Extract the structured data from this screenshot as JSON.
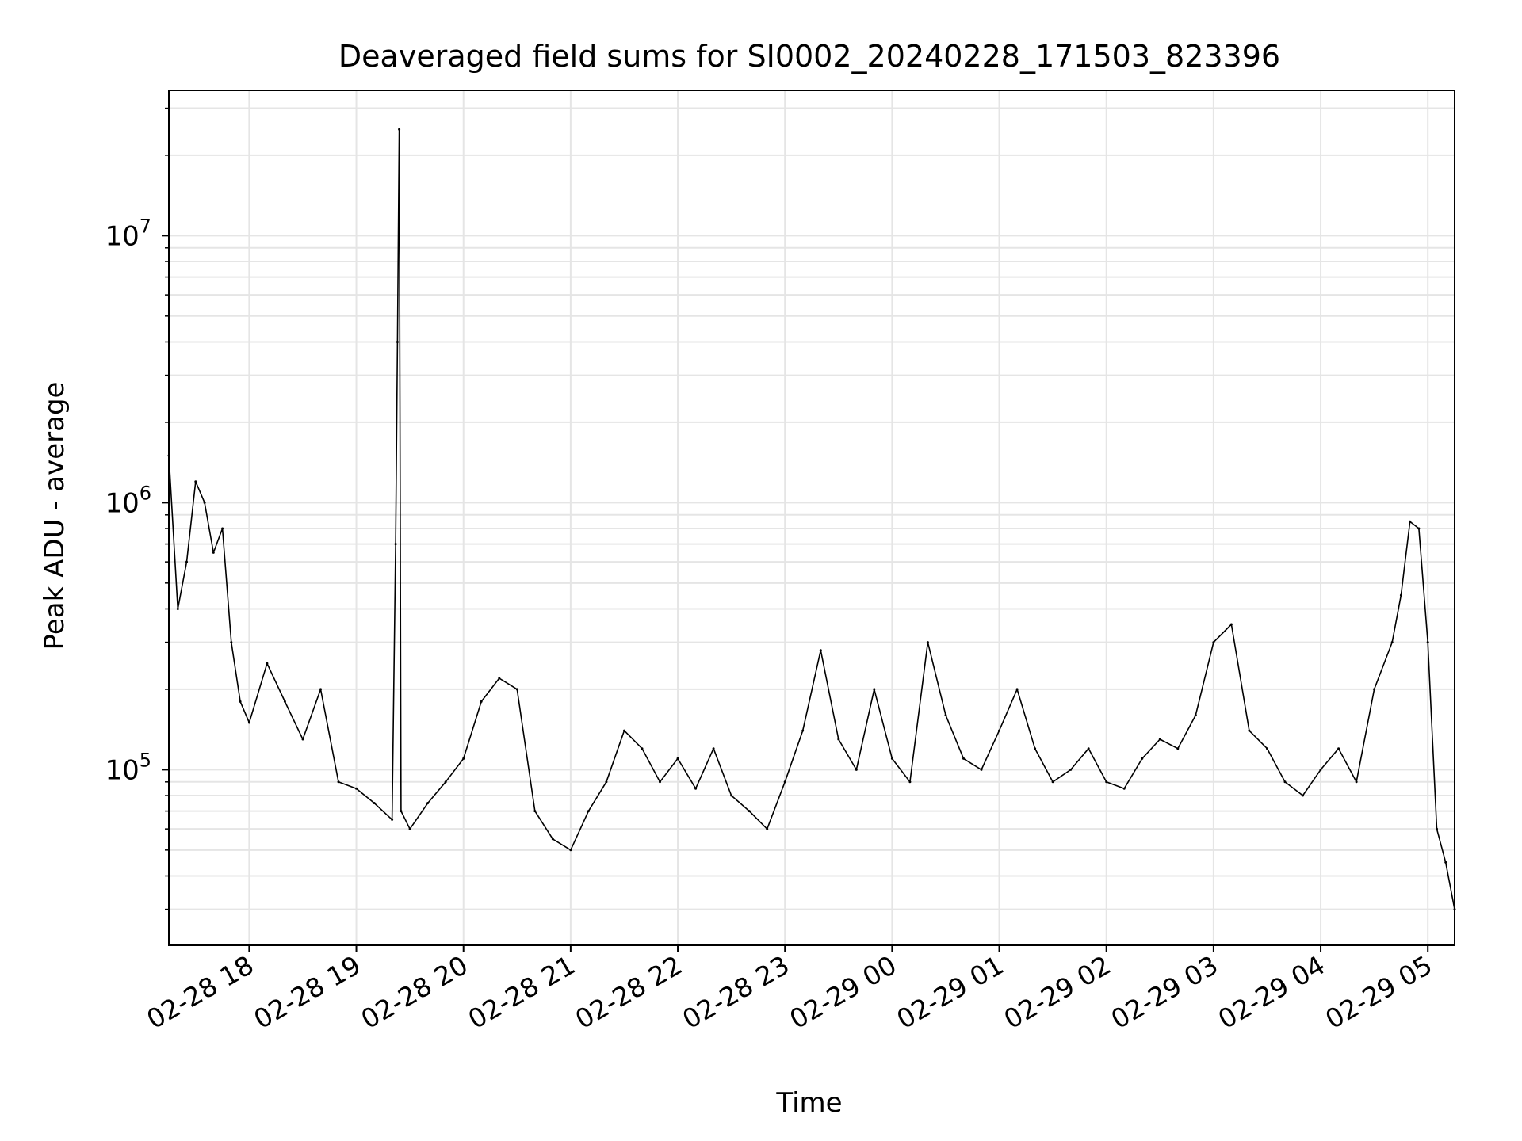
{
  "chart_data": {
    "type": "line",
    "title": "Deaveraged field sums for SI0002_20240228_171503_823396",
    "xlabel": "Time",
    "ylabel": "Peak ADU - average",
    "yscale": "log",
    "ylim": [
      22000,
      35000000
    ],
    "xlim": [
      "2024-02-28 17:15",
      "2024-02-29 05:15"
    ],
    "grid": "on (major and minor)",
    "line_color": "#000000",
    "grid_color": "#e5e5e5",
    "x_ticks": [
      {
        "time": "2024-02-28 18:00",
        "label": "02-28 18"
      },
      {
        "time": "2024-02-28 19:00",
        "label": "02-28 19"
      },
      {
        "time": "2024-02-28 20:00",
        "label": "02-28 20"
      },
      {
        "time": "2024-02-28 21:00",
        "label": "02-28 21"
      },
      {
        "time": "2024-02-28 22:00",
        "label": "02-28 22"
      },
      {
        "time": "2024-02-28 23:00",
        "label": "02-28 23"
      },
      {
        "time": "2024-02-29 00:00",
        "label": "02-29 00"
      },
      {
        "time": "2024-02-29 01:00",
        "label": "02-29 01"
      },
      {
        "time": "2024-02-29 02:00",
        "label": "02-29 02"
      },
      {
        "time": "2024-02-29 03:00",
        "label": "02-29 03"
      },
      {
        "time": "2024-02-29 04:00",
        "label": "02-29 04"
      },
      {
        "time": "2024-02-29 05:00",
        "label": "02-29 05"
      }
    ],
    "y_ticks": [
      {
        "value": 100000,
        "base": "10",
        "exp": "5"
      },
      {
        "value": 1000000,
        "base": "10",
        "exp": "6"
      },
      {
        "value": 10000000,
        "base": "10",
        "exp": "7"
      }
    ],
    "x": [
      "2024-02-28 17:15",
      "2024-02-28 17:20",
      "2024-02-28 17:25",
      "2024-02-28 17:30",
      "2024-02-28 17:35",
      "2024-02-28 17:40",
      "2024-02-28 17:45",
      "2024-02-28 17:50",
      "2024-02-28 17:55",
      "2024-02-28 18:00",
      "2024-02-28 18:10",
      "2024-02-28 18:20",
      "2024-02-28 18:30",
      "2024-02-28 18:40",
      "2024-02-28 18:50",
      "2024-02-28 19:00",
      "2024-02-28 19:10",
      "2024-02-28 19:20",
      "2024-02-28 19:22",
      "2024-02-28 19:23",
      "2024-02-28 19:24",
      "2024-02-28 19:25",
      "2024-02-28 19:30",
      "2024-02-28 19:40",
      "2024-02-28 19:50",
      "2024-02-28 20:00",
      "2024-02-28 20:10",
      "2024-02-28 20:20",
      "2024-02-28 20:30",
      "2024-02-28 20:40",
      "2024-02-28 20:50",
      "2024-02-28 21:00",
      "2024-02-28 21:10",
      "2024-02-28 21:20",
      "2024-02-28 21:30",
      "2024-02-28 21:40",
      "2024-02-28 21:50",
      "2024-02-28 22:00",
      "2024-02-28 22:10",
      "2024-02-28 22:20",
      "2024-02-28 22:30",
      "2024-02-28 22:40",
      "2024-02-28 22:50",
      "2024-02-28 23:00",
      "2024-02-28 23:10",
      "2024-02-28 23:20",
      "2024-02-28 23:30",
      "2024-02-28 23:40",
      "2024-02-28 23:50",
      "2024-02-29 00:00",
      "2024-02-29 00:10",
      "2024-02-29 00:20",
      "2024-02-29 00:30",
      "2024-02-29 00:40",
      "2024-02-29 00:50",
      "2024-02-29 01:00",
      "2024-02-29 01:10",
      "2024-02-29 01:20",
      "2024-02-29 01:30",
      "2024-02-29 01:40",
      "2024-02-29 01:50",
      "2024-02-29 02:00",
      "2024-02-29 02:10",
      "2024-02-29 02:20",
      "2024-02-29 02:30",
      "2024-02-29 02:40",
      "2024-02-29 02:50",
      "2024-02-29 03:00",
      "2024-02-29 03:10",
      "2024-02-29 03:20",
      "2024-02-29 03:30",
      "2024-02-29 03:40",
      "2024-02-29 03:50",
      "2024-02-29 04:00",
      "2024-02-29 04:10",
      "2024-02-29 04:20",
      "2024-02-29 04:30",
      "2024-02-29 04:40",
      "2024-02-29 04:45",
      "2024-02-29 04:50",
      "2024-02-29 04:55",
      "2024-02-29 05:00",
      "2024-02-29 05:05",
      "2024-02-29 05:10",
      "2024-02-29 05:15"
    ],
    "series": [
      {
        "values": [
          1500000,
          400000,
          600000,
          1200000,
          1000000,
          650000,
          800000,
          300000,
          180000,
          150000,
          250000,
          180000,
          130000,
          200000,
          90000,
          85000,
          75000,
          65000,
          700000,
          4000000,
          25000000,
          70000,
          60000,
          75000,
          90000,
          110000,
          180000,
          220000,
          200000,
          70000,
          55000,
          50000,
          70000,
          90000,
          140000,
          120000,
          90000,
          110000,
          85000,
          120000,
          80000,
          70000,
          60000,
          90000,
          140000,
          280000,
          130000,
          100000,
          200000,
          110000,
          90000,
          300000,
          160000,
          110000,
          100000,
          140000,
          200000,
          120000,
          90000,
          100000,
          120000,
          90000,
          85000,
          110000,
          130000,
          120000,
          160000,
          300000,
          350000,
          140000,
          120000,
          90000,
          80000,
          100000,
          120000,
          90000,
          200000,
          300000,
          450000,
          850000,
          800000,
          300000,
          60000,
          45000,
          30000
        ]
      }
    ]
  }
}
